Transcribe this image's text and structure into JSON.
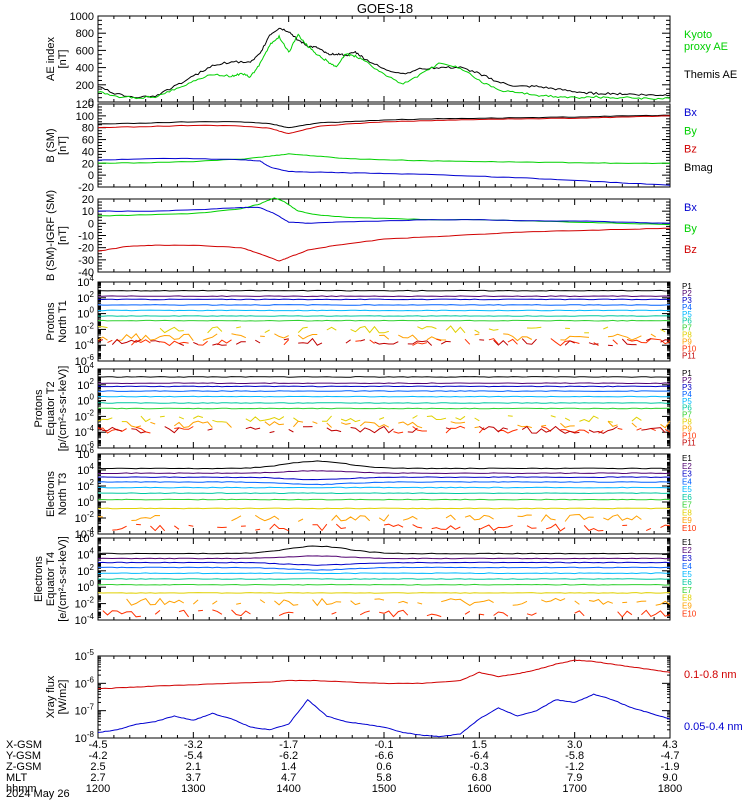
{
  "title": "GOES-18",
  "colors": {
    "black": "#000000",
    "green": "#00d000",
    "blue": "#0000d0",
    "red": "#d00000",
    "p_colors": [
      "#000000",
      "#500070",
      "#0000c8",
      "#0060ff",
      "#00b8ff",
      "#00c8a0",
      "#30d030",
      "#e0d000",
      "#ffa000",
      "#ff3000",
      "#c00000"
    ]
  },
  "chart_data": [
    {
      "panel": "ae",
      "type": "line",
      "ylabel": "AE index\n[nT]",
      "ylim": [
        0,
        1000
      ],
      "log": false,
      "yticks": [
        0,
        200,
        400,
        600,
        800,
        1000
      ],
      "yticklabels": [
        "0",
        "200",
        "400",
        "600",
        "800",
        "1000"
      ],
      "legend": [
        {
          "name": "Kyoto\nproxy AE",
          "color": "green"
        },
        {
          "name": "Themis AE",
          "color": "black"
        }
      ],
      "series": [
        {
          "name": "Themis AE",
          "color": "black",
          "x": [
            12.0,
            12.2,
            12.4,
            12.6,
            12.8,
            13.0,
            13.2,
            13.4,
            13.6,
            13.7,
            13.8,
            13.9,
            14.0,
            14.1,
            14.2,
            14.3,
            14.4,
            14.5,
            14.6,
            14.7,
            14.8,
            15.0,
            15.2,
            15.4,
            15.6,
            15.8,
            16.0,
            16.2,
            16.4,
            16.6,
            16.8,
            17.0,
            17.2,
            17.4,
            17.6,
            17.8,
            18.0
          ],
          "y": [
            180,
            90,
            60,
            70,
            180,
            300,
            420,
            470,
            460,
            560,
            780,
            860,
            820,
            720,
            650,
            630,
            560,
            560,
            540,
            580,
            500,
            380,
            330,
            390,
            400,
            400,
            330,
            230,
            180,
            180,
            150,
            120,
            100,
            100,
            90,
            80,
            80
          ]
        },
        {
          "name": "Kyoto proxy AE",
          "color": "green",
          "x": [
            12.0,
            12.2,
            12.4,
            12.6,
            12.8,
            13.0,
            13.2,
            13.4,
            13.5,
            13.6,
            13.7,
            13.8,
            13.9,
            14.0,
            14.1,
            14.2,
            14.3,
            14.4,
            14.5,
            14.6,
            14.7,
            14.8,
            15.0,
            15.2,
            15.4,
            15.6,
            15.8,
            16.0,
            16.2,
            16.4,
            16.6,
            16.8,
            17.0,
            17.2,
            17.4,
            17.6,
            17.8,
            18.0
          ],
          "y": [
            120,
            60,
            50,
            60,
            150,
            240,
            320,
            300,
            330,
            290,
            450,
            660,
            760,
            580,
            780,
            650,
            550,
            480,
            400,
            560,
            530,
            480,
            320,
            210,
            330,
            460,
            400,
            250,
            140,
            110,
            80,
            60,
            50,
            60,
            50,
            50,
            40,
            40
          ]
        }
      ]
    },
    {
      "panel": "b_sm",
      "type": "line",
      "ylabel": "B (SM)\n[nT]",
      "ylim": [
        -20,
        120
      ],
      "log": false,
      "yticks": [
        -20,
        0,
        20,
        40,
        60,
        80,
        100,
        120
      ],
      "yticklabels": [
        "-20",
        "0",
        "20",
        "40",
        "60",
        "80",
        "100",
        "120"
      ],
      "legend": [
        {
          "name": "Bx",
          "color": "blue"
        },
        {
          "name": "By",
          "color": "green"
        },
        {
          "name": "Bz",
          "color": "red"
        },
        {
          "name": "Bmag",
          "color": "black"
        }
      ],
      "series": [
        {
          "name": "Bmag",
          "color": "black",
          "x": [
            12.0,
            12.5,
            13.0,
            13.5,
            13.8,
            14.0,
            14.3,
            14.6,
            15.0,
            15.5,
            16.0,
            16.5,
            17.0,
            17.5,
            18.0
          ],
          "y": [
            86,
            88,
            90,
            90,
            87,
            80,
            88,
            90,
            93,
            95,
            96,
            97,
            98,
            100,
            101
          ]
        },
        {
          "name": "Bz",
          "color": "red",
          "x": [
            12.0,
            12.5,
            13.0,
            13.5,
            13.8,
            14.0,
            14.3,
            14.6,
            15.0,
            15.5,
            16.0,
            16.5,
            17.0,
            17.5,
            18.0
          ],
          "y": [
            80,
            82,
            84,
            83,
            79,
            70,
            82,
            86,
            90,
            92,
            94,
            95,
            96,
            98,
            100
          ]
        },
        {
          "name": "By",
          "color": "green",
          "x": [
            12.0,
            12.5,
            13.0,
            13.5,
            13.8,
            14.0,
            14.3,
            14.6,
            15.0,
            15.5,
            16.0,
            16.5,
            17.0,
            17.5,
            18.0
          ],
          "y": [
            20,
            21,
            23,
            27,
            32,
            36,
            32,
            28,
            26,
            24,
            23,
            22,
            21,
            20,
            20
          ]
        },
        {
          "name": "Bx",
          "color": "blue",
          "x": [
            12.0,
            12.5,
            13.0,
            13.5,
            13.7,
            13.8,
            14.0,
            14.3,
            14.6,
            15.0,
            15.5,
            16.0,
            16.5,
            17.0,
            17.5,
            18.0
          ],
          "y": [
            25,
            28,
            28,
            26,
            24,
            14,
            6,
            5,
            4,
            3,
            1,
            -2,
            -5,
            -9,
            -13,
            -17
          ]
        }
      ]
    },
    {
      "panel": "b_igrf",
      "type": "line",
      "ylabel": "B (SM)-IGRF (SM)\n[nT]",
      "ylim": [
        -40,
        20
      ],
      "log": false,
      "yticks": [
        -40,
        -30,
        -20,
        -10,
        0,
        10,
        20
      ],
      "yticklabels": [
        "-40",
        "-30",
        "-20",
        "-10",
        "0",
        "10",
        "20"
      ],
      "legend": [
        {
          "name": "Bx",
          "color": "blue"
        },
        {
          "name": "By",
          "color": "green"
        },
        {
          "name": "Bz",
          "color": "red"
        }
      ],
      "series": [
        {
          "name": "By",
          "color": "green",
          "x": [
            12.0,
            12.5,
            13.0,
            13.5,
            13.7,
            13.85,
            13.95,
            14.1,
            14.3,
            14.6,
            15.0,
            15.5,
            16.0,
            16.5,
            17.0,
            17.5,
            18.0
          ],
          "y": [
            6,
            7,
            8,
            12,
            16,
            21,
            18,
            10,
            7,
            5,
            4,
            3,
            3,
            2,
            1,
            0,
            -1
          ]
        },
        {
          "name": "Bx",
          "color": "blue",
          "x": [
            12.0,
            12.5,
            13.0,
            13.5,
            13.7,
            13.85,
            14.0,
            14.2,
            14.5,
            15.0,
            15.5,
            16.0,
            16.5,
            17.0,
            17.5,
            18.0
          ],
          "y": [
            10,
            10,
            11,
            13,
            13,
            8,
            1,
            0,
            1,
            2,
            3,
            3,
            2,
            2,
            1,
            0
          ]
        },
        {
          "name": "Bz",
          "color": "red",
          "x": [
            12.0,
            12.3,
            12.6,
            13.0,
            13.5,
            13.7,
            13.9,
            14.0,
            14.2,
            14.5,
            15.0,
            15.5,
            16.0,
            16.5,
            17.0,
            17.5,
            18.0
          ],
          "y": [
            -23,
            -19,
            -18,
            -18,
            -20,
            -25,
            -31,
            -28,
            -22,
            -18,
            -13,
            -11,
            -9,
            -7,
            -6,
            -5,
            -4
          ]
        }
      ]
    },
    {
      "panel": "protons_t1",
      "type": "line",
      "ylabel": "Protons\nNorth T1",
      "ylim": [
        -6,
        4
      ],
      "log": true,
      "yticks": [
        -6,
        -4,
        -2,
        0,
        2,
        4
      ],
      "yticklabels": [
        "10^-6",
        "10^-4",
        "10^-2",
        "10^0",
        "10^2",
        "10^4"
      ],
      "channels": [
        "P1",
        "P2",
        "P3",
        "P4",
        "P5",
        "P6",
        "P7",
        "P8",
        "P9",
        "P10",
        "P11"
      ],
      "levels": [
        2.9,
        2.2,
        1.8,
        1.1,
        0.4,
        -0.3,
        -0.9,
        -2.0,
        -3.0,
        -3.6,
        -3.6
      ],
      "gappy_from": 7
    },
    {
      "panel": "protons_t2",
      "type": "line",
      "ylabel": "Protons\nEquator T2\n[p/(cm²-s-sr-keV)]",
      "ylim": [
        -6,
        4
      ],
      "log": true,
      "yticks": [
        -6,
        -4,
        -2,
        0,
        2,
        4
      ],
      "yticklabels": [
        "10^-6",
        "10^-4",
        "10^-2",
        "10^0",
        "10^2",
        "10^4"
      ],
      "channels": [
        "P1",
        "P2",
        "P3",
        "P4",
        "P5",
        "P6",
        "P7",
        "P8",
        "P9",
        "P10",
        "P11"
      ],
      "levels": [
        3.0,
        2.2,
        1.8,
        1.2,
        0.5,
        -0.3,
        -1.0,
        -2.3,
        -3.0,
        -3.7,
        -3.7
      ],
      "gappy_from": 7
    },
    {
      "panel": "electrons_t3",
      "type": "line",
      "ylabel": "Electrons\nNorth T3",
      "ylim": [
        -4,
        6
      ],
      "log": true,
      "yticks": [
        -4,
        -2,
        0,
        2,
        4,
        6
      ],
      "yticklabels": [
        "10^-4",
        "10^-2",
        "10^0",
        "10^2",
        "10^4",
        "10^6"
      ],
      "channels": [
        "E1",
        "E2",
        "E3",
        "E4",
        "E5",
        "E6",
        "E7",
        "E8",
        "E9",
        "E10"
      ],
      "levels": [
        4.2,
        3.6,
        3.1,
        2.5,
        1.8,
        1.1,
        0.3,
        -0.8,
        -2.0,
        -3.2
      ],
      "gappy_from": 8
    },
    {
      "panel": "electrons_t4",
      "type": "line",
      "ylabel": "Electrons\nEquator T4\n[e/(cm²-s-sr-keV)]",
      "ylim": [
        -4,
        6
      ],
      "log": true,
      "yticks": [
        -4,
        -2,
        0,
        2,
        4,
        6
      ],
      "yticklabels": [
        "10^-4",
        "10^-2",
        "10^0",
        "10^2",
        "10^4",
        "10^6"
      ],
      "channels": [
        "E1",
        "E2",
        "E3",
        "E4",
        "E5",
        "E6",
        "E7",
        "E8",
        "E9",
        "E10"
      ],
      "levels": [
        4.1,
        3.5,
        3.0,
        2.4,
        1.7,
        1.0,
        0.3,
        -0.7,
        -1.8,
        -3.2
      ],
      "gappy_from": 8
    },
    {
      "panel": "xray",
      "type": "line",
      "ylabel": "Xray flux\n[W/m2]",
      "ylim": [
        -8,
        -5
      ],
      "log": true,
      "yticks": [
        -8,
        -7,
        -6,
        -5
      ],
      "yticklabels": [
        "10^-8",
        "10^-7",
        "10^-6",
        "10^-5"
      ],
      "legend": [
        {
          "name": "0.1-0.8 nm",
          "color": "red"
        },
        {
          "name": "0.05-0.4 nm",
          "color": "blue"
        }
      ],
      "series": [
        {
          "name": "0.1-0.8 nm",
          "color": "red",
          "x": [
            12.0,
            12.3,
            12.6,
            13.0,
            13.4,
            13.8,
            14.0,
            14.3,
            14.6,
            15.0,
            15.4,
            15.8,
            16.0,
            16.2,
            16.4,
            16.6,
            16.8,
            17.0,
            17.2,
            17.4,
            17.6,
            17.8,
            18.0
          ],
          "y": [
            -6.2,
            -6.15,
            -6.1,
            -6.05,
            -6.0,
            -5.95,
            -5.9,
            -5.9,
            -5.95,
            -6.0,
            -6.0,
            -5.9,
            -5.6,
            -5.75,
            -5.65,
            -5.5,
            -5.3,
            -5.15,
            -5.2,
            -5.3,
            -5.4,
            -5.5,
            -5.6
          ]
        },
        {
          "name": "0.05-0.4 nm",
          "color": "blue",
          "x": [
            12.0,
            12.2,
            12.4,
            12.6,
            12.8,
            13.0,
            13.2,
            13.4,
            13.6,
            13.8,
            14.0,
            14.2,
            14.4,
            14.6,
            14.8,
            15.0,
            15.2,
            15.4,
            15.6,
            15.8,
            16.0,
            16.2,
            16.4,
            16.6,
            16.8,
            17.0,
            17.2,
            17.4,
            17.6,
            17.8,
            18.0
          ],
          "y": [
            -7.8,
            -7.7,
            -7.5,
            -7.4,
            -7.2,
            -7.35,
            -7.1,
            -7.3,
            -7.6,
            -7.7,
            -7.5,
            -6.6,
            -7.2,
            -7.4,
            -7.5,
            -7.6,
            -7.8,
            -7.9,
            -7.95,
            -7.85,
            -7.3,
            -6.9,
            -7.2,
            -7.0,
            -6.6,
            -6.7,
            -6.4,
            -6.6,
            -6.9,
            -7.1,
            -7.3
          ]
        }
      ]
    }
  ],
  "x_axis": {
    "rows": [
      {
        "label": "X-GSM",
        "values": [
          "-4.5",
          "-3.2",
          "-1.7",
          "-0.1",
          "1.5",
          "3.0",
          "4.3"
        ]
      },
      {
        "label": "Y-GSM",
        "values": [
          "-4.2",
          "-5.4",
          "-6.2",
          "-6.6",
          "-6.4",
          "-5.8",
          "-4.7"
        ]
      },
      {
        "label": "Z-GSM",
        "values": [
          "2.5",
          "2.1",
          "1.4",
          "0.6",
          "-0.3",
          "-1.2",
          "-1.9"
        ]
      },
      {
        "label": "MLT",
        "values": [
          "2.7",
          "3.7",
          "4.7",
          "5.8",
          "6.8",
          "7.9",
          "9.0"
        ]
      },
      {
        "label": "hhmm",
        "values": [
          "1200",
          "1300",
          "1400",
          "1500",
          "1600",
          "1700",
          "1800"
        ]
      }
    ],
    "date": "2024 May 26",
    "xlim": [
      12,
      18
    ]
  }
}
